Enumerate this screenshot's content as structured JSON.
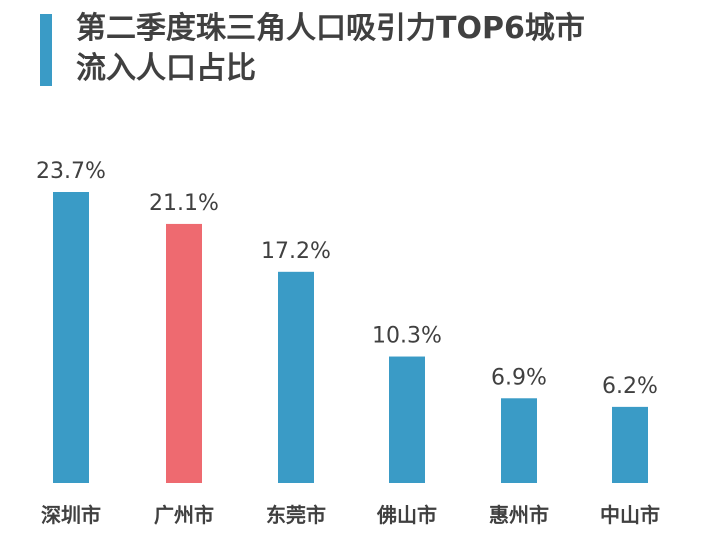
{
  "colors": {
    "accent": "#3a9bc6",
    "bar_default": "#3a9bc6",
    "bar_highlight": "#ee6a70",
    "text": "#404040"
  },
  "chart_data": {
    "type": "bar",
    "title": "第二季度珠三角人口吸引力TOP6城市",
    "subtitle": "流入人口占比",
    "categories": [
      "深圳市",
      "广州市",
      "东莞市",
      "佛山市",
      "惠州市",
      "中山市"
    ],
    "values": [
      23.7,
      21.1,
      17.2,
      10.3,
      6.9,
      6.2
    ],
    "value_labels": [
      "23.7%",
      "21.1%",
      "17.2%",
      "10.3%",
      "6.9%",
      "6.2%"
    ],
    "highlight_index": 1,
    "xlabel": "",
    "ylabel": "",
    "ylim": [
      0,
      23.7
    ],
    "grid": false,
    "legend": "none"
  }
}
